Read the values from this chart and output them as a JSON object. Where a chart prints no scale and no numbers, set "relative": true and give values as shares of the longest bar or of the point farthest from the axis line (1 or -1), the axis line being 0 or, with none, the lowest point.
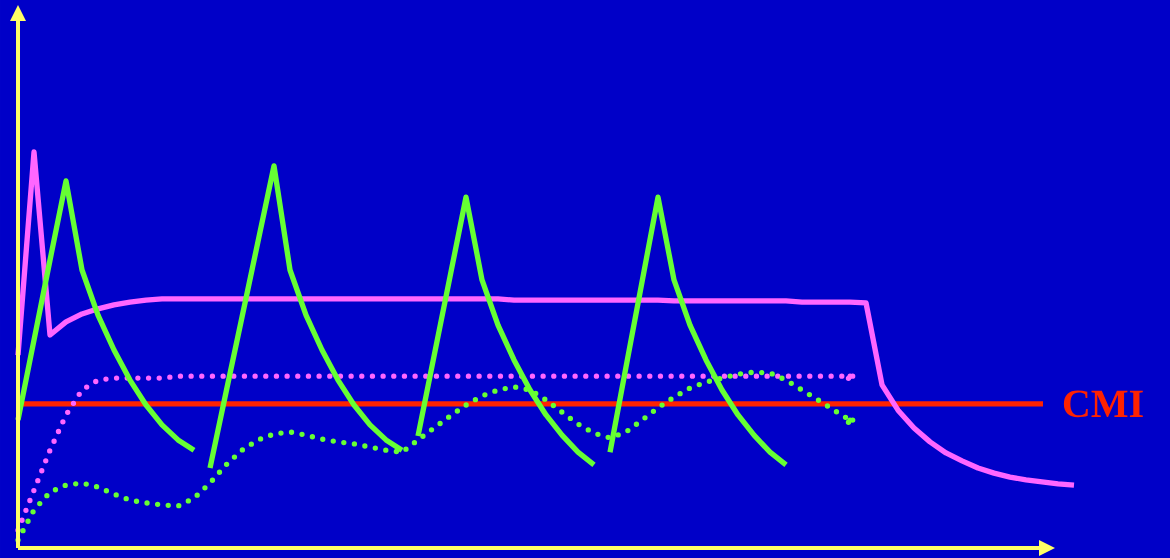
{
  "chart_data": {
    "type": "line",
    "relative": true,
    "categories": [
      null,
      null,
      null,
      null,
      null,
      null,
      null,
      null,
      null,
      null,
      null,
      null,
      null,
      null,
      null,
      null,
      null,
      null,
      null,
      null,
      null,
      null,
      null,
      null,
      null,
      null,
      null,
      null,
      null,
      null,
      null,
      null,
      null,
      null,
      null,
      null,
      null,
      null,
      null,
      null,
      null,
      null,
      null,
      null,
      null,
      null,
      null,
      null,
      null,
      null,
      null,
      null,
      null,
      null,
      null,
      null,
      null,
      null,
      null,
      null,
      null,
      null,
      null,
      null,
      null,
      null,
      null
    ],
    "series": [
      {
        "color": "#ff66ff",
        "line_style": "solid",
        "values": [
          0.487,
          1.0,
          0.538,
          0.571,
          0.591,
          0.604,
          0.614,
          0.621,
          0.626,
          0.629,
          0.629,
          0.629,
          0.629,
          0.629,
          0.629,
          0.629,
          0.629,
          0.629,
          0.629,
          0.629,
          0.629,
          0.629,
          0.629,
          0.629,
          0.629,
          0.629,
          0.629,
          0.629,
          0.629,
          0.629,
          0.629,
          0.626,
          0.626,
          0.626,
          0.626,
          0.626,
          0.626,
          0.626,
          0.626,
          0.626,
          0.626,
          0.624,
          0.624,
          0.624,
          0.624,
          0.624,
          0.624,
          0.624,
          0.624,
          0.621,
          0.621,
          0.621,
          0.621,
          0.619,
          0.412,
          0.348,
          0.303,
          0.268,
          0.24,
          0.22,
          0.202,
          0.189,
          0.179,
          0.172,
          0.167,
          0.162,
          0.159
        ]
      },
      {
        "color": "#ff66ff",
        "line_style": "dotted",
        "values": [
          0.045,
          0.146,
          0.247,
          0.336,
          0.399,
          0.424,
          0.429,
          0.429,
          0.429,
          0.429,
          0.434,
          0.434,
          0.434,
          0.434,
          0.434,
          0.434,
          0.434,
          0.434,
          0.434,
          0.434,
          0.434,
          0.434,
          0.434,
          0.434,
          0.434,
          0.434,
          0.434,
          0.434,
          0.434,
          0.434,
          0.434,
          0.434,
          0.434,
          0.434,
          0.434,
          0.434,
          0.434,
          0.434,
          0.434,
          0.434,
          0.434,
          0.434,
          0.434,
          0.434,
          0.434,
          0.434,
          0.434,
          0.434,
          0.434,
          0.434,
          0.434,
          0.434,
          0.434,
          null,
          null,
          null,
          null,
          null,
          null,
          null,
          null,
          null,
          null,
          null,
          null,
          null,
          null
        ]
      },
      {
        "color": "#66ff33",
        "line_style": "dotted",
        "values": [
          0.02,
          0.096,
          0.141,
          0.159,
          0.164,
          0.154,
          0.136,
          0.121,
          0.114,
          0.109,
          0.106,
          0.126,
          0.164,
          0.21,
          0.247,
          0.273,
          0.288,
          0.293,
          0.285,
          0.275,
          0.268,
          0.263,
          0.255,
          0.247,
          0.242,
          0.273,
          0.303,
          0.333,
          0.361,
          0.384,
          0.399,
          0.407,
          0.399,
          0.374,
          0.343,
          0.313,
          0.29,
          0.278,
          0.293,
          0.323,
          0.354,
          0.381,
          0.404,
          0.419,
          0.429,
          0.439,
          0.444,
          0.442,
          0.424,
          0.399,
          0.374,
          0.348,
          0.323,
          null,
          null,
          null,
          null,
          null,
          null,
          null,
          null,
          null,
          null,
          null,
          null,
          null,
          null
        ]
      },
      {
        "color": "#66ff33",
        "line_style": "solid",
        "values": [
          0.323,
          0.525,
          0.727,
          0.927,
          0.702,
          0.588,
          0.5,
          0.424,
          0.361,
          0.311,
          0.273,
          0.247,
          null,
          null,
          null,
          null,
          null,
          null,
          null,
          null,
          null,
          null,
          null,
          null,
          null,
          null,
          null,
          null,
          null,
          null,
          null,
          null,
          null,
          null,
          null,
          null,
          null,
          null,
          null,
          null,
          null,
          null,
          null,
          null,
          null,
          null,
          null,
          null,
          null,
          null,
          null,
          null,
          null,
          null,
          null,
          null,
          null,
          null,
          null,
          null,
          null,
          null,
          null,
          null,
          null,
          null,
          null
        ]
      },
      {
        "color": "#66ff33",
        "line_style": "solid",
        "values": [
          null,
          null,
          null,
          null,
          null,
          null,
          null,
          null,
          null,
          null,
          null,
          null,
          0.202,
          0.393,
          0.583,
          0.774,
          0.965,
          0.702,
          0.588,
          0.5,
          0.424,
          0.361,
          0.311,
          0.273,
          0.247,
          null,
          null,
          null,
          null,
          null,
          null,
          null,
          null,
          null,
          null,
          null,
          null,
          null,
          null,
          null,
          null,
          null,
          null,
          null,
          null,
          null,
          null,
          null,
          null,
          null,
          null,
          null,
          null,
          null,
          null,
          null,
          null,
          null,
          null,
          null,
          null,
          null,
          null,
          null,
          null,
          null,
          null
        ]
      },
      {
        "color": "#66ff33",
        "line_style": "solid",
        "values": [
          null,
          null,
          null,
          null,
          null,
          null,
          null,
          null,
          null,
          null,
          null,
          null,
          null,
          null,
          null,
          null,
          null,
          null,
          null,
          null,
          null,
          null,
          null,
          null,
          null,
          0.283,
          0.484,
          0.685,
          0.886,
          0.677,
          0.563,
          0.475,
          0.399,
          0.336,
          0.285,
          0.242,
          0.21,
          null,
          null,
          null,
          null,
          null,
          null,
          null,
          null,
          null,
          null,
          null,
          null,
          null,
          null,
          null,
          null,
          null,
          null,
          null,
          null,
          null,
          null,
          null,
          null,
          null,
          null,
          null,
          null,
          null,
          null
        ]
      },
      {
        "color": "#66ff33",
        "line_style": "solid",
        "values": [
          null,
          null,
          null,
          null,
          null,
          null,
          null,
          null,
          null,
          null,
          null,
          null,
          null,
          null,
          null,
          null,
          null,
          null,
          null,
          null,
          null,
          null,
          null,
          null,
          null,
          null,
          null,
          null,
          null,
          null,
          null,
          null,
          null,
          null,
          null,
          null,
          null,
          0.242,
          0.457,
          0.672,
          0.886,
          0.677,
          0.563,
          0.475,
          0.399,
          0.336,
          0.285,
          0.242,
          0.21,
          null,
          null,
          null,
          null,
          null,
          null,
          null,
          null,
          null,
          null,
          null,
          null,
          null,
          null,
          null,
          null,
          null,
          null
        ]
      }
    ],
    "ref_lines": [
      {
        "axis": "y",
        "value": 0.364,
        "label": "CMI",
        "color": "#ff2200"
      }
    ]
  }
}
